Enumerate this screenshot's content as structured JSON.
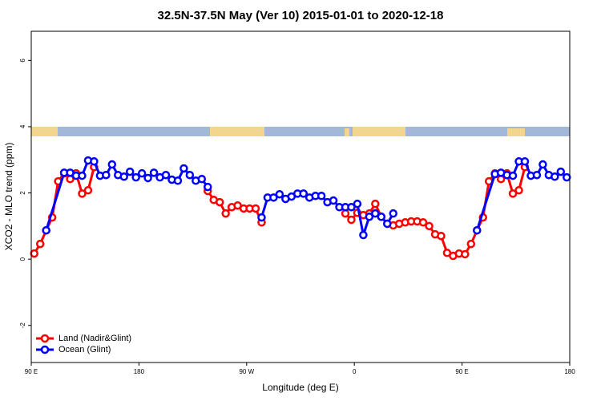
{
  "chart_data": {
    "type": "line",
    "title": "32.5N-37.5N May (Ver 10)   2015-01-01 to 2020-12-18",
    "xlabel": "Longitude (deg E)",
    "ylabel": "XCO2 - MLO trend (ppm)",
    "xlim": [
      90,
      540
    ],
    "ylim": [
      -3.12,
      6.88
    ],
    "xticks": [
      {
        "value": 90,
        "label": "90 E"
      },
      180,
      {
        "value": 270,
        "label": "90 W"
      },
      {
        "value": 360,
        "label": "0"
      },
      {
        "value": 450,
        "label": "90 E"
      },
      {
        "value": 540,
        "label": "180"
      }
    ],
    "yticks": [
      -2,
      0,
      2,
      4,
      6
    ],
    "legend": "bottomleft",
    "series": [
      {
        "name": "Land (Nadir&Glint)",
        "color": "#ff0000",
        "x": [
          92.5,
          97.5,
          102.5,
          107.5,
          112.5,
          117.5,
          122.5,
          127.5,
          132.5,
          137.5,
          142.5,
          147.5,
          237.5,
          242.5,
          247.5,
          252.5,
          257.5,
          262.5,
          267.5,
          272.5,
          277.5,
          282.5,
          287.5,
          352.5,
          357.5,
          362.5,
          367.5,
          372.5,
          377.5,
          382.5,
          387.5,
          392.5,
          397.5,
          402.5,
          407.5,
          412.5,
          417.5,
          422.5,
          427.5,
          432.5,
          437.5,
          442.5,
          447.5,
          452.5,
          457.5,
          462.5,
          467.5,
          472.5,
          477.5,
          482.5,
          487.5,
          492.5,
          497.5,
          502.5
        ],
        "values": [
          0.17,
          0.46,
          0.87,
          1.26,
          2.35,
          2.59,
          2.42,
          2.59,
          1.98,
          2.08,
          2.78,
          null,
          2.06,
          1.79,
          1.72,
          1.38,
          1.57,
          1.62,
          1.53,
          1.53,
          1.53,
          1.11,
          null,
          1.38,
          1.19,
          1.4,
          1.33,
          1.38,
          1.67,
          1.28,
          1.07,
          1.02,
          1.07,
          1.11,
          1.14,
          1.14,
          1.11,
          1.0,
          0.75,
          0.7,
          0.19,
          0.1,
          0.17,
          0.15,
          0.46,
          0.87,
          1.26,
          2.35,
          2.59,
          2.42,
          2.59,
          1.98,
          2.08,
          2.78
        ]
      },
      {
        "name": "Ocean (Glint)",
        "color": "#0000ff",
        "x": [
          102.5,
          117.5,
          122.5,
          127.5,
          132.5,
          137.5,
          142.5,
          147.5,
          152.5,
          157.5,
          162.5,
          167.5,
          172.5,
          177.5,
          182.5,
          187.5,
          192.5,
          197.5,
          202.5,
          207.5,
          212.5,
          217.5,
          222.5,
          227.5,
          232.5,
          237.5,
          242.5,
          282.5,
          287.5,
          292.5,
          297.5,
          302.5,
          307.5,
          312.5,
          317.5,
          322.5,
          327.5,
          332.5,
          337.5,
          342.5,
          347.5,
          352.5,
          357.5,
          362.5,
          367.5,
          372.5,
          377.5,
          382.5,
          387.5,
          392.5,
          397.5,
          462.5,
          477.5,
          482.5,
          487.5,
          492.5,
          497.5,
          502.5,
          507.5,
          512.5,
          517.5,
          522.5,
          527.5,
          532.5,
          537.5
        ],
        "values": [
          0.87,
          2.61,
          2.61,
          2.52,
          2.52,
          2.98,
          2.95,
          2.52,
          2.54,
          2.86,
          2.54,
          2.49,
          2.64,
          2.47,
          2.59,
          2.45,
          2.61,
          2.47,
          2.54,
          2.4,
          2.37,
          2.74,
          2.54,
          2.37,
          2.42,
          2.18,
          null,
          1.26,
          1.86,
          1.86,
          1.96,
          1.82,
          1.89,
          1.98,
          1.98,
          1.86,
          1.91,
          1.91,
          1.72,
          1.77,
          1.57,
          1.57,
          1.57,
          1.67,
          0.73,
          1.28,
          1.38,
          1.28,
          1.07,
          1.38,
          null,
          0.87,
          2.57,
          2.61,
          2.54,
          2.52,
          2.95,
          2.95,
          2.52,
          2.54,
          2.86,
          2.54,
          2.49,
          2.64,
          2.47
        ]
      }
    ]
  }
}
